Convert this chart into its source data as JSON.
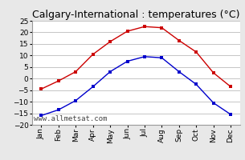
{
  "title": "Calgary-International : temperatures (°C)",
  "months": [
    "Jan",
    "Feb",
    "Mar",
    "Apr",
    "May",
    "Jun",
    "Jul",
    "Aug",
    "Sep",
    "Oct",
    "Nov",
    "Dec"
  ],
  "high_temps": [
    -4.5,
    -1.0,
    3.0,
    10.5,
    16.0,
    20.5,
    22.5,
    22.0,
    16.5,
    11.5,
    2.5,
    -3.5
  ],
  "low_temps": [
    -16.0,
    -13.5,
    -9.5,
    -3.5,
    3.0,
    7.5,
    9.5,
    9.0,
    3.0,
    -2.5,
    -10.5,
    -15.5
  ],
  "high_color": "#cc0000",
  "low_color": "#0000cc",
  "bg_color": "#e8e8e8",
  "plot_bg_color": "#ffffff",
  "grid_color": "#bbbbbb",
  "ylim": [
    -20,
    25
  ],
  "yticks": [
    -20,
    -15,
    -10,
    -5,
    0,
    5,
    10,
    15,
    20,
    25
  ],
  "watermark": "www.allmetsat.com",
  "title_fontsize": 9,
  "tick_fontsize": 6.5,
  "watermark_fontsize": 6.5
}
